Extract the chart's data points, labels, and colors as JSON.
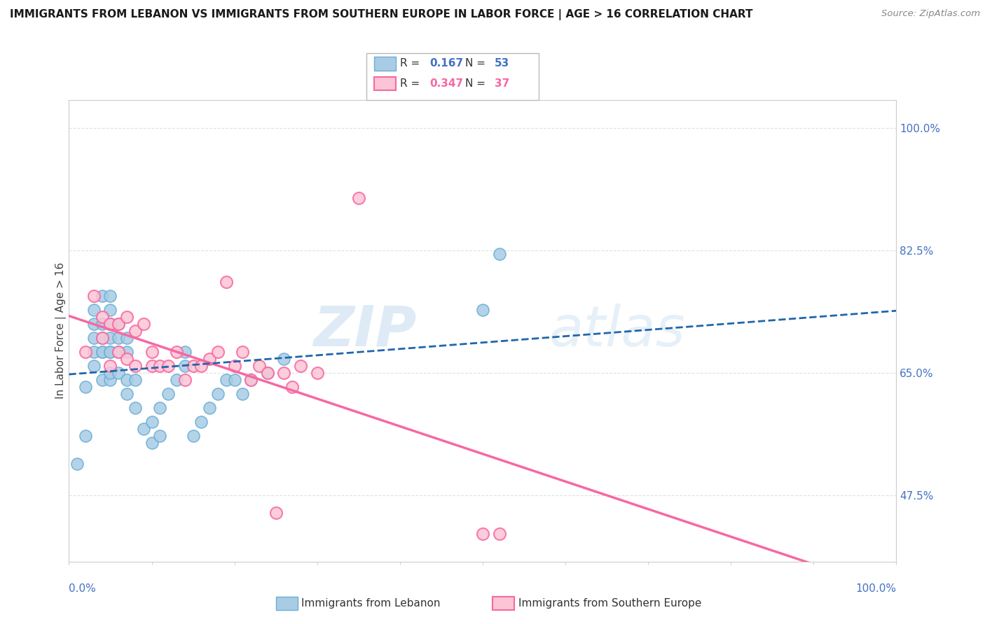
{
  "title": "IMMIGRANTS FROM LEBANON VS IMMIGRANTS FROM SOUTHERN EUROPE IN LABOR FORCE | AGE > 16 CORRELATION CHART",
  "source": "Source: ZipAtlas.com",
  "ylabel": "In Labor Force | Age > 16",
  "ytick_labels": [
    "47.5%",
    "65.0%",
    "82.5%",
    "100.0%"
  ],
  "ytick_values": [
    0.475,
    0.65,
    0.825,
    1.0
  ],
  "xlim": [
    0.0,
    1.0
  ],
  "ylim": [
    0.38,
    1.04
  ],
  "blue_color": "#a8cce4",
  "blue_edge_color": "#6baed6",
  "pink_color": "#fcc5d5",
  "pink_edge_color": "#f768a1",
  "blue_line_color": "#2166ac",
  "pink_line_color": "#f768a1",
  "axis_label_color": "#4472c4",
  "r_blue": 0.167,
  "n_blue": 53,
  "r_pink": 0.347,
  "n_pink": 37,
  "blue_scatter_x": [
    0.01,
    0.02,
    0.02,
    0.03,
    0.03,
    0.03,
    0.03,
    0.03,
    0.04,
    0.04,
    0.04,
    0.04,
    0.04,
    0.04,
    0.05,
    0.05,
    0.05,
    0.05,
    0.05,
    0.05,
    0.05,
    0.05,
    0.06,
    0.06,
    0.06,
    0.06,
    0.07,
    0.07,
    0.07,
    0.07,
    0.08,
    0.08,
    0.09,
    0.1,
    0.1,
    0.11,
    0.11,
    0.12,
    0.13,
    0.14,
    0.14,
    0.15,
    0.16,
    0.17,
    0.18,
    0.19,
    0.2,
    0.21,
    0.22,
    0.24,
    0.26,
    0.5,
    0.52
  ],
  "blue_scatter_y": [
    0.52,
    0.56,
    0.63,
    0.66,
    0.7,
    0.72,
    0.68,
    0.74,
    0.64,
    0.68,
    0.7,
    0.72,
    0.76,
    0.68,
    0.64,
    0.68,
    0.7,
    0.72,
    0.74,
    0.76,
    0.65,
    0.68,
    0.65,
    0.68,
    0.7,
    0.72,
    0.62,
    0.64,
    0.68,
    0.7,
    0.6,
    0.64,
    0.57,
    0.55,
    0.58,
    0.56,
    0.6,
    0.62,
    0.64,
    0.66,
    0.68,
    0.56,
    0.58,
    0.6,
    0.62,
    0.64,
    0.64,
    0.62,
    0.64,
    0.65,
    0.67,
    0.74,
    0.82
  ],
  "pink_scatter_x": [
    0.02,
    0.03,
    0.04,
    0.04,
    0.05,
    0.05,
    0.06,
    0.06,
    0.07,
    0.07,
    0.08,
    0.08,
    0.09,
    0.1,
    0.1,
    0.11,
    0.12,
    0.13,
    0.14,
    0.15,
    0.16,
    0.17,
    0.18,
    0.19,
    0.2,
    0.21,
    0.22,
    0.23,
    0.24,
    0.26,
    0.27,
    0.28,
    0.3,
    0.35,
    0.5,
    0.52,
    0.25
  ],
  "pink_scatter_y": [
    0.68,
    0.76,
    0.7,
    0.73,
    0.66,
    0.72,
    0.68,
    0.72,
    0.67,
    0.73,
    0.66,
    0.71,
    0.72,
    0.66,
    0.68,
    0.66,
    0.66,
    0.68,
    0.64,
    0.66,
    0.66,
    0.67,
    0.68,
    0.78,
    0.66,
    0.68,
    0.64,
    0.66,
    0.65,
    0.65,
    0.63,
    0.66,
    0.65,
    0.9,
    0.42,
    0.42,
    0.45
  ],
  "watermark_zip": "ZIP",
  "watermark_atlas": "atlas",
  "background_color": "#ffffff",
  "grid_color": "#e0e0e0",
  "legend_blue_label_r": "R = ",
  "legend_blue_r_val": "0.167",
  "legend_blue_n": "  N = ",
  "legend_blue_n_val": "53",
  "legend_pink_label_r": "R = ",
  "legend_pink_r_val": "0.347",
  "legend_pink_n": "  N = ",
  "legend_pink_n_val": "37",
  "bottom_label_blue": "Immigrants from Lebanon",
  "bottom_label_pink": "Immigrants from Southern Europe"
}
